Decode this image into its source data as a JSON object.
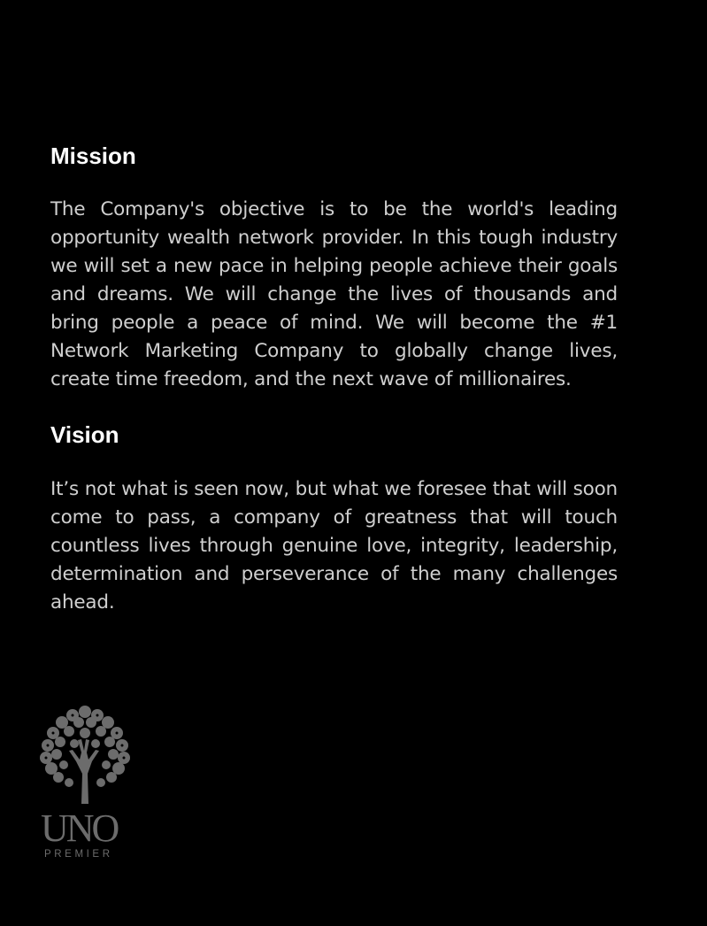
{
  "mission": {
    "heading": "Mission",
    "body": "The Company's objective is to be the world's leading opportunity wealth network provider. In this tough industry we will set a new pace in helping people achieve their goals and dreams. We will change the lives of thousands and bring people a peace of mind. We will become the #1 Network Marketing Company to globally change lives, create time freedom, and the next wave of millionaires."
  },
  "vision": {
    "heading": "Vision",
    "body": "It’s not what is seen now, but what we foresee that will soon come to pass, a company of  greatness that will touch countless lives through genuine love, integrity, leadership, determination and perseverance of the many challenges ahead."
  },
  "logo": {
    "icon": "tree-icon",
    "name": "UNO",
    "tagline": "PREMIER",
    "color": "#6c6c6c"
  },
  "colors": {
    "background": "#000000",
    "heading": "#ffffff",
    "body_text": "#cfcfcf"
  }
}
